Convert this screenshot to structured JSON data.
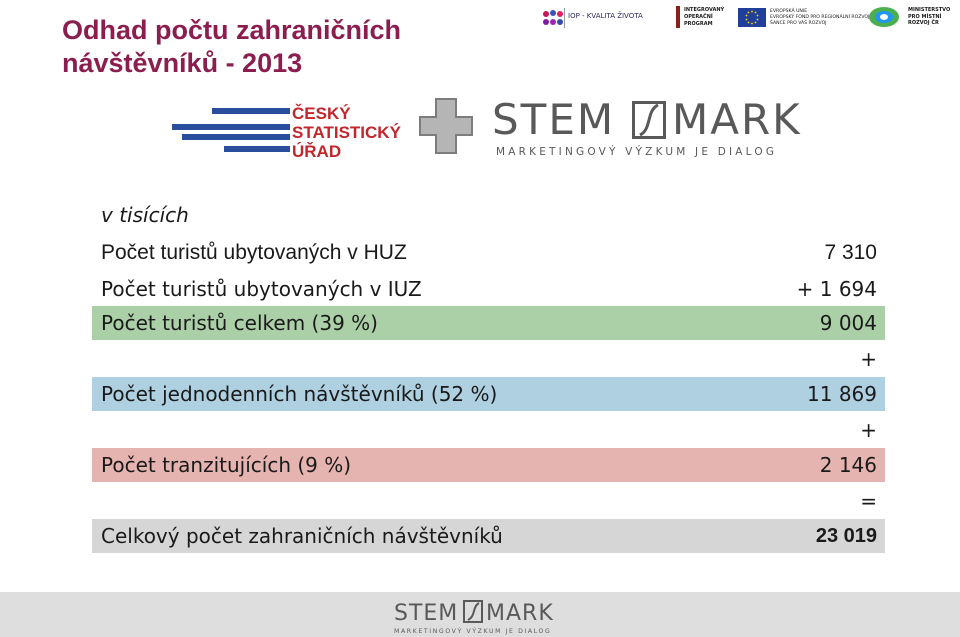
{
  "title": "Odhad počtu zahraničních návštěvníků - 2013",
  "sponsors": {
    "iop": "IOP - KVALITA ŽIVOTA",
    "integrovany": "INTEGROVANÝ\nOPERAČNÍ\nPROGRAM",
    "eu": "EVROPSKÁ UNIE\nEVROPSKÝ FOND PRO REGIONÁLNÍ ROZVOJ\nŠANCE PRO VÁŠ ROZVOJ",
    "mmr": "MINISTERSTVO\nPRO MÍSTNÍ\nROZVOJ ČR"
  },
  "logos": {
    "csu": "ČESKÝ\nSTATISTICKÝ\nÚŘAD",
    "stem_left": "STEM",
    "stem_right": "MARK",
    "stem_sub": "MARKETINGOVÝ VÝZKUM JE DIALOG"
  },
  "unit_label": "v tisících",
  "rows": [
    {
      "label": "Počet turistů ubytovaných v HUZ",
      "value": "7 310"
    },
    {
      "label": "Počet turistů ubytovaných v IUZ",
      "value": "+ 1 694"
    },
    {
      "label": "Počet turistů celkem (39 %)",
      "value": "9 004"
    },
    {
      "label": "Počet jednodenních návštěvníků (52 %)",
      "value": "11 869"
    },
    {
      "label": "Počet tranzitujících (9 %)",
      "value": "2 146"
    },
    {
      "label": "Celkový počet zahraničních návštěvníků",
      "value": "23 019"
    }
  ],
  "operators": [
    "+",
    "+",
    "="
  ],
  "colors": {
    "title": "#8b1d4f",
    "green": "#abd0a7",
    "blue": "#aed0e0",
    "pink": "#e6b4b0",
    "gray": "#d6d6d6"
  }
}
